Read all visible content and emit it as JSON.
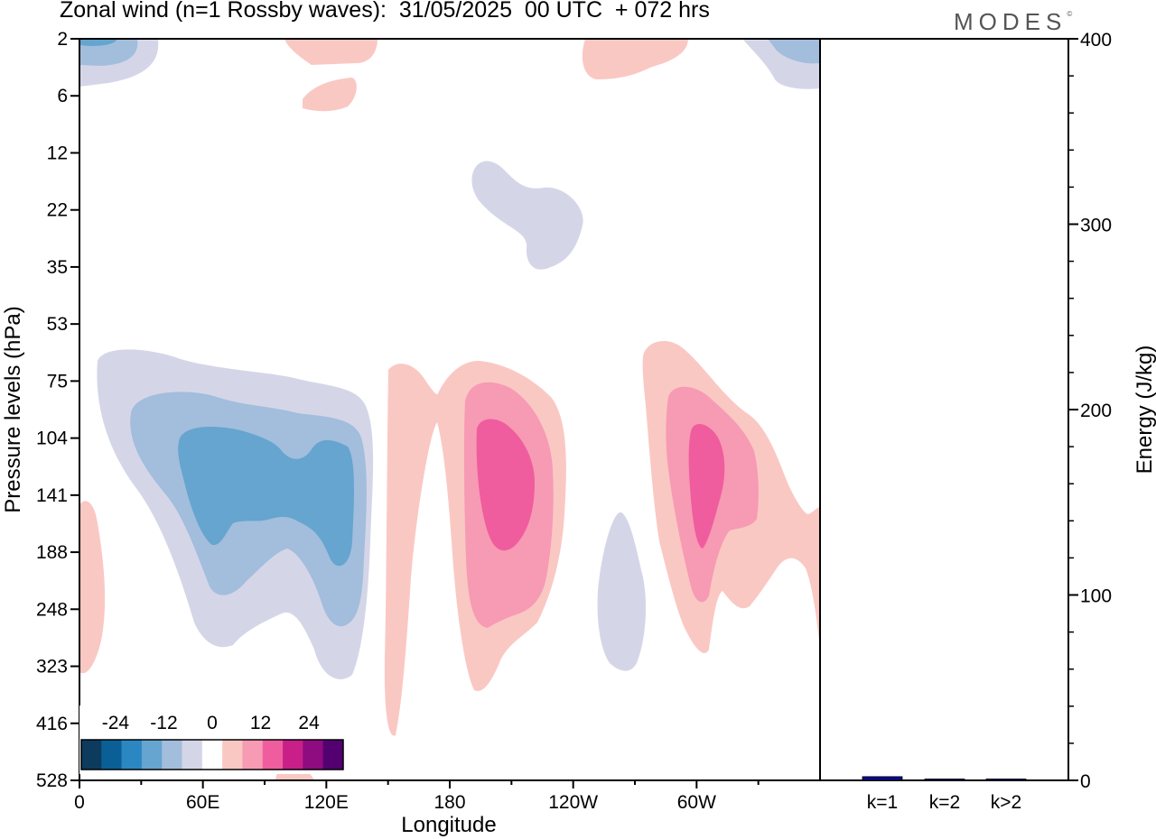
{
  "header": {
    "title": "Zonal wind (n=1 Rossby waves):  31/05/2025  00 UTC  + 072 hrs",
    "brand": "MODES",
    "brand_mark": "©"
  },
  "colors": {
    "level_colors": [
      "#0d3b5e",
      "#0a5f96",
      "#2b87c2",
      "#65a5cf",
      "#a3bddc",
      "#d4d6e8",
      "#ffffff",
      "#fac8c3",
      "#f79ab4",
      "#ef5d9e",
      "#c81f89",
      "#8e0c80",
      "#530070"
    ],
    "energy_bar": "#0a0a8a"
  },
  "chart_data": [
    {
      "type": "heatmap",
      "title": "Zonal wind (n=1 Rossby waves):  31/05/2025  00 UTC  + 072 hrs",
      "xlabel": "Longitude",
      "ylabel": "Pressure levels (hPa)",
      "x_ticks": [
        "0",
        "60E",
        "120E",
        "180",
        "120W",
        "60W"
      ],
      "y_ticks": [
        "2",
        "6",
        "12",
        "22",
        "35",
        "53",
        "75",
        "104",
        "141",
        "188",
        "248",
        "323",
        "416",
        "528"
      ],
      "colorbar": {
        "labels": [
          "-24",
          "-12",
          "0",
          "12",
          "24"
        ],
        "levels": [
          -30,
          -25,
          -20,
          -15,
          -10,
          -5,
          0,
          5,
          10,
          15,
          20,
          25,
          30
        ]
      },
      "features": [
        {
          "name": "westerly core near 90E",
          "sign": "negative",
          "peak": -18,
          "lon_range": [
            10,
            130
          ],
          "levels_hPa": [
            75,
            323
          ]
        },
        {
          "name": "positive core near 195E",
          "sign": "positive",
          "peak": 14,
          "lon_range": [
            150,
            240
          ],
          "levels_hPa": [
            75,
            416
          ]
        },
        {
          "name": "positive core near 60W",
          "sign": "positive",
          "peak": 14,
          "lon_range": [
            265,
            360
          ],
          "levels_hPa": [
            53,
            323
          ]
        },
        {
          "name": "negative patch near 95W",
          "sign": "negative",
          "peak": -5,
          "lon_range": [
            255,
            275
          ],
          "levels_hPa": [
            170,
            323
          ]
        },
        {
          "name": "negative patch near 205E",
          "sign": "negative",
          "peak": -5,
          "lon_range": [
            190,
            245
          ],
          "levels_hPa": [
            12,
            35
          ]
        }
      ]
    },
    {
      "type": "bar",
      "categories": [
        "k=1",
        "k=2",
        "k>2"
      ],
      "values": [
        2,
        0.5,
        0.5
      ],
      "ylabel": "Energy (J/kg)",
      "ylim": [
        0,
        400
      ],
      "y_ticks": [
        "0",
        "100",
        "200",
        "300",
        "400"
      ]
    }
  ]
}
